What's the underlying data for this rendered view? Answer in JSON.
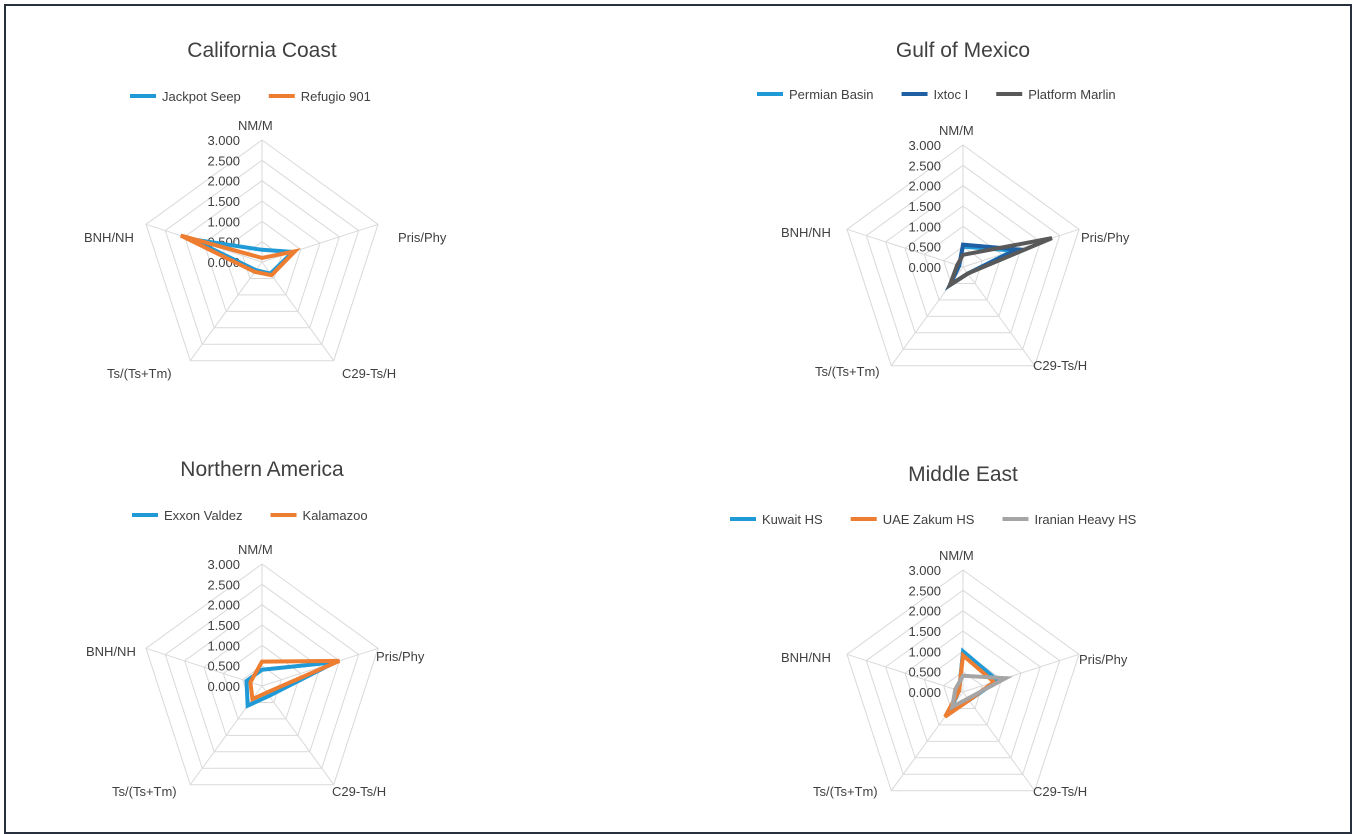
{
  "chart_data": [
    {
      "type": "radar",
      "title": "California Coast",
      "axes": [
        "NM/M",
        "Pris/Phy",
        "C29-Ts/H",
        "Ts/(Ts+Tm)",
        "BNH/NH"
      ],
      "ticks": [
        "3.000",
        "2.500",
        "2.000",
        "1.500",
        "1.000",
        "0.500",
        "0.000"
      ],
      "rlim": [
        0,
        3
      ],
      "legend_position": "top",
      "series": [
        {
          "name": "Jackpot Seep",
          "color": "#1f9ad6",
          "values": [
            0.3,
            0.8,
            0.35,
            0.25,
            1.8
          ]
        },
        {
          "name": "Refugio 901",
          "color": "#ed7d31",
          "values": [
            0.1,
            0.85,
            0.4,
            0.3,
            2.1
          ]
        }
      ]
    },
    {
      "type": "radar",
      "title": "Gulf of Mexico",
      "axes": [
        "NM/M",
        "Pris/Phy",
        "C29-Ts/H",
        "Ts/(Ts+Tm)",
        "BNH/NH"
      ],
      "ticks": [
        "3.000",
        "2.500",
        "2.000",
        "1.500",
        "1.000",
        "0.500",
        "0.000"
      ],
      "rlim": [
        0,
        3
      ],
      "legend_position": "top",
      "series": [
        {
          "name": "Permian Basin",
          "color": "#1f9ad6",
          "values": [
            0.5,
            1.3,
            0.2,
            0.55,
            0.1
          ]
        },
        {
          "name": "Ixtoc I",
          "color": "#1f5fa3",
          "values": [
            0.55,
            1.4,
            0.2,
            0.55,
            0.1
          ]
        },
        {
          "name": "Platform Marlin",
          "color": "#595959",
          "values": [
            0.3,
            2.3,
            0.2,
            0.55,
            0.15
          ]
        }
      ]
    },
    {
      "type": "radar",
      "title": "Northern America",
      "axes": [
        "NM/M",
        "Pris/Phy",
        "C29-Ts/H",
        "Ts/(Ts+Tm)",
        "BNH/NH"
      ],
      "ticks": [
        "3.000",
        "2.500",
        "2.000",
        "1.500",
        "1.000",
        "0.500",
        "0.000"
      ],
      "rlim": [
        0,
        3
      ],
      "legend_position": "top",
      "series": [
        {
          "name": "Exxon Valdez",
          "color": "#1f9ad6",
          "values": [
            0.4,
            1.9,
            0.3,
            0.6,
            0.4
          ]
        },
        {
          "name": "Kalamazoo",
          "color": "#ed7d31",
          "values": [
            0.6,
            2.0,
            0.2,
            0.4,
            0.3
          ]
        }
      ]
    },
    {
      "type": "radar",
      "title": "Middle East",
      "axes": [
        "NM/M",
        "Pris/Phy",
        "C29-Ts/H",
        "Ts/(Ts+Tm)",
        "BNH/NH"
      ],
      "ticks": [
        "3.000",
        "2.500",
        "2.000",
        "1.500",
        "1.000",
        "0.500",
        "0.000"
      ],
      "rlim": [
        0,
        3
      ],
      "legend_position": "top",
      "series": [
        {
          "name": "Kuwait HS",
          "color": "#1f9ad6",
          "values": [
            1.0,
            0.9,
            0.25,
            0.55,
            0.1
          ]
        },
        {
          "name": "UAE Zakum HS",
          "color": "#ed7d31",
          "values": [
            0.9,
            0.8,
            0.25,
            0.75,
            0.1
          ]
        },
        {
          "name": "Iranian Heavy HS",
          "color": "#a5a5a5",
          "values": [
            0.4,
            1.1,
            0.2,
            0.45,
            0.2
          ]
        }
      ]
    }
  ]
}
